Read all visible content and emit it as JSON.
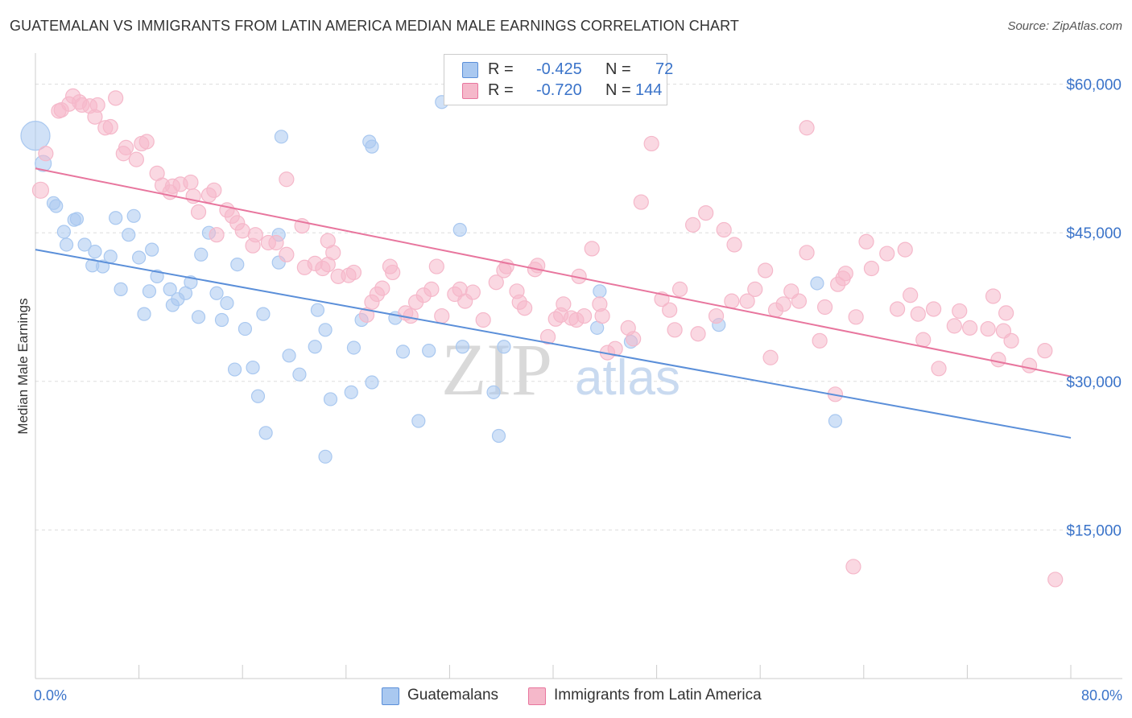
{
  "title": "GUATEMALAN VS IMMIGRANTS FROM LATIN AMERICA MEDIAN MALE EARNINGS CORRELATION CHART",
  "source": "Source: ZipAtlas.com",
  "watermark": {
    "zip": "ZIP",
    "atlas": "atlas"
  },
  "legend": {
    "rows": [
      {
        "r_label": "R =",
        "r_value": "-0.425",
        "n_label": "N =",
        "n_value": "72",
        "color": "#a9c8f0"
      },
      {
        "r_label": "R =",
        "r_value": "-0.720",
        "n_label": "N =",
        "n_value": "144",
        "color": "#f5b8ca"
      }
    ]
  },
  "bottom_legend": {
    "guatemalans": "Guatemalans",
    "immigrants": "Immigrants from Latin America"
  },
  "chart_data": {
    "type": "scatter",
    "title": "GUATEMALAN VS IMMIGRANTS FROM LATIN AMERICA MEDIAN MALE EARNINGS CORRELATION CHART",
    "xlabel": "",
    "ylabel": "Median Male Earnings",
    "xlim": [
      0,
      80
    ],
    "ylim": [
      0,
      62000
    ],
    "x_tick_labels": [
      "0.0%",
      "80.0%"
    ],
    "y_ticks": [
      15000,
      30000,
      45000,
      60000
    ],
    "y_tick_labels": [
      "$15,000",
      "$30,000",
      "$45,000",
      "$60,000"
    ],
    "grid": true,
    "legend_position": "top-center",
    "series": [
      {
        "name": "Guatemalans",
        "color": "#5b8fd9",
        "fill": "#a9c8f0",
        "trend": {
          "x": [
            0,
            80
          ],
          "y": [
            43300,
            24300
          ]
        },
        "points": [
          [
            0.0,
            54800,
            18
          ],
          [
            0.6,
            52000,
            10
          ],
          [
            1.4,
            48000,
            8
          ],
          [
            1.6,
            47700,
            8
          ],
          [
            3.0,
            46300,
            8
          ],
          [
            3.2,
            46400,
            8
          ],
          [
            6.2,
            46500,
            8
          ],
          [
            7.6,
            46700,
            8
          ],
          [
            2.2,
            45100,
            8
          ],
          [
            7.2,
            44800,
            8
          ],
          [
            13.4,
            45000,
            8
          ],
          [
            2.4,
            43800,
            8
          ],
          [
            3.8,
            43800,
            8
          ],
          [
            4.6,
            43100,
            8
          ],
          [
            5.8,
            42600,
            8
          ],
          [
            9.0,
            43300,
            8
          ],
          [
            12.8,
            42800,
            8
          ],
          [
            8.0,
            42500,
            8
          ],
          [
            4.4,
            41700,
            8
          ],
          [
            5.2,
            41600,
            8
          ],
          [
            15.6,
            41800,
            8
          ],
          [
            18.8,
            42000,
            8
          ],
          [
            9.4,
            40600,
            8
          ],
          [
            12.0,
            40000,
            8
          ],
          [
            6.6,
            39300,
            8
          ],
          [
            8.8,
            39100,
            8
          ],
          [
            10.4,
            39300,
            8
          ],
          [
            11.6,
            38900,
            8
          ],
          [
            14.0,
            38900,
            8
          ],
          [
            11.0,
            38300,
            8
          ],
          [
            10.6,
            37700,
            8
          ],
          [
            14.8,
            37900,
            8
          ],
          [
            8.4,
            36800,
            8
          ],
          [
            12.6,
            36500,
            8
          ],
          [
            14.4,
            36200,
            8
          ],
          [
            16.2,
            35300,
            8
          ],
          [
            17.6,
            36800,
            8
          ],
          [
            22.4,
            35200,
            8
          ],
          [
            21.8,
            37200,
            8
          ],
          [
            25.2,
            36200,
            8
          ],
          [
            21.6,
            33500,
            8
          ],
          [
            24.6,
            33400,
            8
          ],
          [
            28.4,
            33000,
            8
          ],
          [
            30.4,
            33100,
            8
          ],
          [
            33.0,
            33500,
            8
          ],
          [
            36.2,
            33500,
            8
          ],
          [
            19.6,
            32600,
            8
          ],
          [
            15.4,
            31200,
            8
          ],
          [
            16.8,
            31400,
            8
          ],
          [
            20.4,
            30700,
            8
          ],
          [
            26.0,
            29900,
            8
          ],
          [
            24.4,
            28900,
            8
          ],
          [
            17.2,
            28500,
            8
          ],
          [
            22.8,
            28200,
            8
          ],
          [
            35.4,
            28900,
            8
          ],
          [
            29.6,
            26000,
            8
          ],
          [
            35.8,
            24500,
            8
          ],
          [
            17.8,
            24800,
            8
          ],
          [
            22.4,
            22400,
            8
          ],
          [
            31.4,
            58200,
            8
          ],
          [
            19.0,
            54700,
            8
          ],
          [
            25.8,
            54200,
            8
          ],
          [
            26.0,
            53700,
            8
          ],
          [
            32.8,
            45300,
            8
          ],
          [
            43.6,
            39100,
            8
          ],
          [
            43.4,
            35400,
            8
          ],
          [
            46.0,
            34000,
            8
          ],
          [
            52.8,
            35700,
            8
          ],
          [
            60.4,
            39900,
            8
          ],
          [
            61.8,
            26000,
            8
          ],
          [
            18.8,
            44800,
            8
          ],
          [
            27.8,
            36400,
            8
          ]
        ]
      },
      {
        "name": "Immigrants from Latin America",
        "color": "#e8769e",
        "fill": "#f5b8ca",
        "trend": {
          "x": [
            0,
            80
          ],
          "y": [
            51500,
            30500
          ]
        },
        "points": [
          [
            0.4,
            49300,
            10
          ],
          [
            0.8,
            53000,
            9
          ],
          [
            1.8,
            57300,
            9
          ],
          [
            2.0,
            57400,
            9
          ],
          [
            2.6,
            58000,
            9
          ],
          [
            2.9,
            58800,
            9
          ],
          [
            3.4,
            58200,
            9
          ],
          [
            3.6,
            57900,
            9
          ],
          [
            4.2,
            57800,
            9
          ],
          [
            4.8,
            57900,
            9
          ],
          [
            6.2,
            58600,
            9
          ],
          [
            5.4,
            55600,
            9
          ],
          [
            5.8,
            55700,
            9
          ],
          [
            4.6,
            56700,
            9
          ],
          [
            7.0,
            53600,
            9
          ],
          [
            6.8,
            53000,
            9
          ],
          [
            8.2,
            54000,
            9
          ],
          [
            8.6,
            54200,
            9
          ],
          [
            7.8,
            52400,
            9
          ],
          [
            9.4,
            51000,
            9
          ],
          [
            9.8,
            49800,
            9
          ],
          [
            10.6,
            49700,
            9
          ],
          [
            11.2,
            49900,
            9
          ],
          [
            12.0,
            50100,
            9
          ],
          [
            10.4,
            49100,
            9
          ],
          [
            12.2,
            48700,
            9
          ],
          [
            13.4,
            48800,
            9
          ],
          [
            13.8,
            49300,
            9
          ],
          [
            12.6,
            47100,
            9
          ],
          [
            14.8,
            47300,
            9
          ],
          [
            15.2,
            46700,
            9
          ],
          [
            15.6,
            46000,
            9
          ],
          [
            16.0,
            45200,
            9
          ],
          [
            14.0,
            44800,
            9
          ],
          [
            17.0,
            44800,
            9
          ],
          [
            16.8,
            43700,
            9
          ],
          [
            18.0,
            44000,
            9
          ],
          [
            18.6,
            44000,
            9
          ],
          [
            19.4,
            42800,
            9
          ],
          [
            20.6,
            45700,
            9
          ],
          [
            19.4,
            50400,
            9
          ],
          [
            20.8,
            41500,
            9
          ],
          [
            21.6,
            41900,
            9
          ],
          [
            22.2,
            41400,
            9
          ],
          [
            22.6,
            41800,
            9
          ],
          [
            23.0,
            43000,
            9
          ],
          [
            22.6,
            44200,
            9
          ],
          [
            23.4,
            40600,
            9
          ],
          [
            24.2,
            40700,
            9
          ],
          [
            24.6,
            41000,
            9
          ],
          [
            25.6,
            36700,
            9
          ],
          [
            26.0,
            38000,
            9
          ],
          [
            26.4,
            38800,
            9
          ],
          [
            26.8,
            39400,
            9
          ],
          [
            27.6,
            41000,
            9
          ],
          [
            27.4,
            41600,
            9
          ],
          [
            28.6,
            36900,
            9
          ],
          [
            29.0,
            36600,
            9
          ],
          [
            29.4,
            38000,
            9
          ],
          [
            30.0,
            38700,
            9
          ],
          [
            30.6,
            39300,
            9
          ],
          [
            31.0,
            41600,
            9
          ],
          [
            31.4,
            36600,
            9
          ],
          [
            32.4,
            38800,
            9
          ],
          [
            32.8,
            39300,
            9
          ],
          [
            33.2,
            38100,
            9
          ],
          [
            33.8,
            39000,
            9
          ],
          [
            34.6,
            36200,
            9
          ],
          [
            35.6,
            40000,
            9
          ],
          [
            36.2,
            41200,
            9
          ],
          [
            36.4,
            41600,
            9
          ],
          [
            37.2,
            39100,
            9
          ],
          [
            37.4,
            38000,
            9
          ],
          [
            37.8,
            37400,
            9
          ],
          [
            38.6,
            41300,
            9
          ],
          [
            38.8,
            41700,
            9
          ],
          [
            39.6,
            34500,
            9
          ],
          [
            40.2,
            36300,
            9
          ],
          [
            40.6,
            36700,
            9
          ],
          [
            40.8,
            37800,
            9
          ],
          [
            41.4,
            36400,
            9
          ],
          [
            41.8,
            36200,
            9
          ],
          [
            42.4,
            36600,
            9
          ],
          [
            42.0,
            40600,
            9
          ],
          [
            43.0,
            43400,
            9
          ],
          [
            43.6,
            37800,
            9
          ],
          [
            43.8,
            36600,
            9
          ],
          [
            44.2,
            32900,
            9
          ],
          [
            44.8,
            33300,
            9
          ],
          [
            45.8,
            35400,
            9
          ],
          [
            46.2,
            34300,
            9
          ],
          [
            46.8,
            48100,
            9
          ],
          [
            47.6,
            54000,
            9
          ],
          [
            48.4,
            38300,
            9
          ],
          [
            49.0,
            37200,
            9
          ],
          [
            49.4,
            35200,
            9
          ],
          [
            49.8,
            39300,
            9
          ],
          [
            50.8,
            45800,
            9
          ],
          [
            51.2,
            34800,
            9
          ],
          [
            51.8,
            47000,
            9
          ],
          [
            52.6,
            36600,
            9
          ],
          [
            53.2,
            45300,
            9
          ],
          [
            53.8,
            38100,
            9
          ],
          [
            54.0,
            43800,
            9
          ],
          [
            55.0,
            38100,
            9
          ],
          [
            55.6,
            39300,
            9
          ],
          [
            56.4,
            41200,
            9
          ],
          [
            56.8,
            32400,
            9
          ],
          [
            57.2,
            37200,
            9
          ],
          [
            57.8,
            37800,
            9
          ],
          [
            58.4,
            39100,
            9
          ],
          [
            59.0,
            38100,
            9
          ],
          [
            59.6,
            43000,
            9
          ],
          [
            59.6,
            55600,
            9
          ],
          [
            60.6,
            34100,
            9
          ],
          [
            61.0,
            37500,
            9
          ],
          [
            61.8,
            28700,
            9
          ],
          [
            62.0,
            39800,
            9
          ],
          [
            62.4,
            40400,
            9
          ],
          [
            62.6,
            40900,
            9
          ],
          [
            63.4,
            36500,
            9
          ],
          [
            64.2,
            44100,
            9
          ],
          [
            64.6,
            41400,
            9
          ],
          [
            65.8,
            42900,
            9
          ],
          [
            66.6,
            37300,
            9
          ],
          [
            67.2,
            43300,
            9
          ],
          [
            67.6,
            38700,
            9
          ],
          [
            68.2,
            36800,
            9
          ],
          [
            68.6,
            34200,
            9
          ],
          [
            69.4,
            37300,
            9
          ],
          [
            69.8,
            31300,
            9
          ],
          [
            71.0,
            35600,
            9
          ],
          [
            71.4,
            37100,
            9
          ],
          [
            72.2,
            35400,
            9
          ],
          [
            73.6,
            35300,
            9
          ],
          [
            74.4,
            32200,
            9
          ],
          [
            74.8,
            35100,
            9
          ],
          [
            75.0,
            36900,
            9
          ],
          [
            75.4,
            34100,
            9
          ],
          [
            76.8,
            31600,
            9
          ],
          [
            78.0,
            33100,
            9
          ],
          [
            78.8,
            10000,
            9
          ],
          [
            63.2,
            11300,
            9
          ],
          [
            74.0,
            38600,
            9
          ]
        ]
      }
    ]
  }
}
